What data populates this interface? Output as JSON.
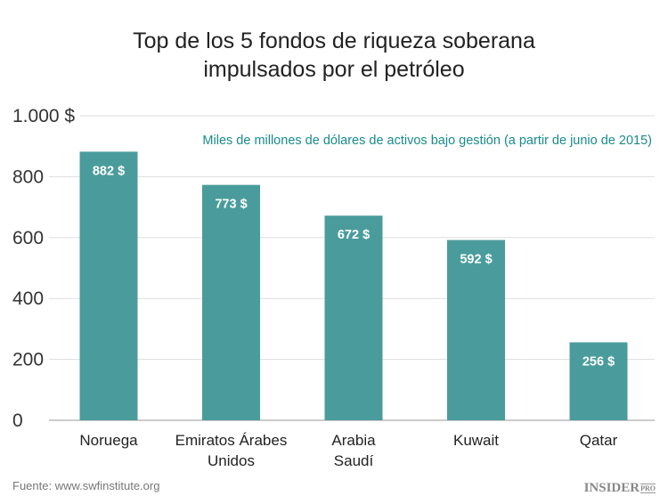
{
  "chart_data": {
    "type": "bar",
    "title_lines": [
      "Top de los 5 fondos de riqueza soberana",
      "impulsados por el petróleo"
    ],
    "subtitle": "Miles de millones de dólares de activos bajo gestión (a partir de junio de 2015)",
    "categories": [
      [
        "Noruega"
      ],
      [
        "Emiratos Árabes",
        "Unidos"
      ],
      [
        "Arabia",
        "Saudí"
      ],
      [
        "Kuwait"
      ],
      [
        "Qatar"
      ]
    ],
    "values": [
      882,
      773,
      672,
      592,
      256
    ],
    "data_labels": [
      "882 $",
      "773 $",
      "672 $",
      "592 $",
      "256 $"
    ],
    "y_ticks": [
      0,
      200,
      400,
      600,
      800,
      1000
    ],
    "y_tick_labels": [
      "0",
      "200",
      "400",
      "600",
      "800",
      "1.000 $"
    ],
    "ylim": [
      0,
      1000
    ],
    "grid": true,
    "bar_color": "#4a9c9c",
    "source": "Fuente: www.swfinstitute.org"
  },
  "logo": {
    "text": "INSIDER",
    "suffix": "PRO"
  }
}
